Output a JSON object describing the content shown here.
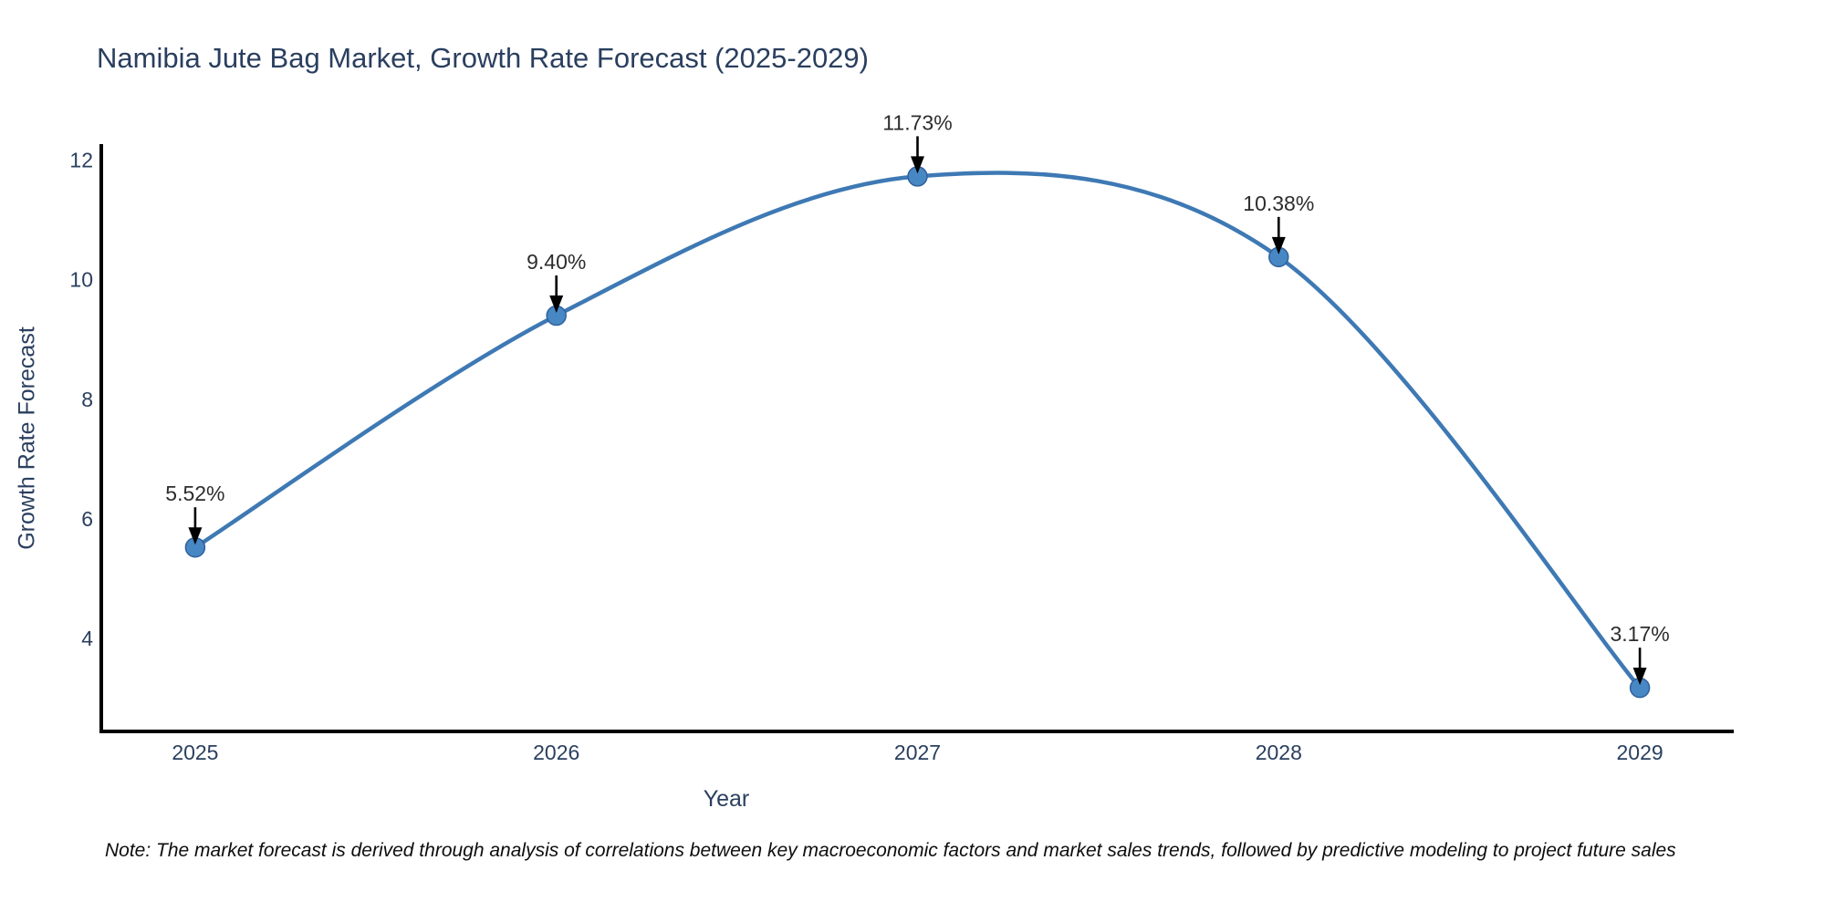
{
  "chart_data": {
    "type": "line",
    "title": "Namibia Jute Bag Market, Growth Rate Forecast (2025-2029)",
    "xlabel": "Year",
    "ylabel": "Growth Rate Forecast",
    "x": [
      2025,
      2026,
      2027,
      2028,
      2029
    ],
    "values": [
      5.52,
      9.4,
      11.73,
      10.38,
      3.17
    ],
    "point_labels": [
      "5.52%",
      "9.40%",
      "11.73%",
      "10.38%",
      "3.17%"
    ],
    "yticks": [
      4,
      6,
      8,
      10,
      12
    ],
    "xticks": [
      2025,
      2026,
      2027,
      2028,
      2029
    ],
    "ylim": [
      2.44,
      12.24
    ],
    "xlim": [
      2024.74,
      2029.26
    ],
    "line_shape": "spline",
    "grid": false,
    "legend": "none",
    "note": "Note: The market forecast is derived through analysis of correlations between key macroeconomic factors and market sales trends, followed by predictive modeling to project future sales",
    "colors": {
      "line": "#3e79b4",
      "marker_fill": "#4787c4",
      "marker_edge": "#30619c",
      "axis": "#000000",
      "tick_text": "#2a3f5f",
      "annotation": "#2d2d2d",
      "title_text": "#2a3f5f",
      "background": "#ffffff"
    }
  }
}
